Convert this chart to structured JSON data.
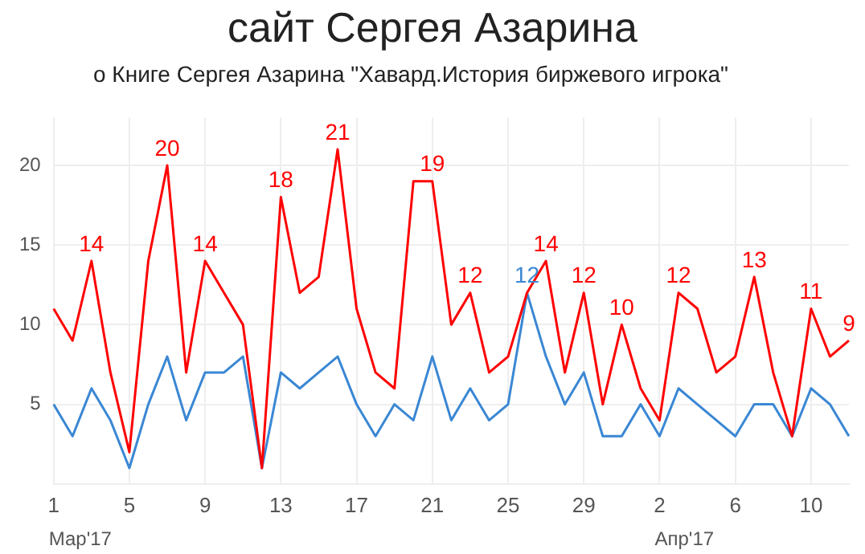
{
  "chart_data": {
    "type": "line",
    "title": "сайт Сергея Азарина",
    "subtitle": "о Книге Сергея Азарина \"Хавард.История биржевого игрока\"",
    "categories": [
      "1",
      null,
      null,
      null,
      "5",
      null,
      null,
      null,
      "9",
      null,
      null,
      null,
      "13",
      null,
      null,
      null,
      "17",
      null,
      null,
      null,
      "21",
      null,
      null,
      null,
      "25",
      null,
      null,
      null,
      "29",
      null,
      null,
      null,
      "2",
      null,
      null,
      null,
      "6",
      null,
      null,
      null,
      "10",
      null,
      null
    ],
    "series": [
      {
        "color": "#ff0000",
        "values": [
          11,
          9,
          14,
          7,
          2,
          14,
          20,
          7,
          14,
          12,
          10,
          1,
          18,
          12,
          13,
          21,
          11,
          7,
          6,
          19,
          19,
          10,
          12,
          7,
          8,
          12,
          14,
          7,
          12,
          5,
          10,
          6,
          4,
          12,
          11,
          7,
          8,
          13,
          7,
          3,
          11,
          8,
          9
        ],
        "value_labels": [
          null,
          null,
          "14",
          null,
          null,
          null,
          "20",
          null,
          "14",
          null,
          null,
          null,
          "18",
          null,
          null,
          "21",
          null,
          null,
          null,
          null,
          "19",
          null,
          "12",
          null,
          null,
          null,
          "14",
          null,
          "12",
          null,
          "10",
          null,
          null,
          "12",
          null,
          null,
          null,
          "13",
          null,
          null,
          "11",
          null,
          "9"
        ]
      },
      {
        "color": "#3a87d4",
        "values": [
          5,
          3,
          6,
          4,
          1,
          5,
          8,
          4,
          7,
          7,
          8,
          1,
          7,
          6,
          7,
          8,
          5,
          3,
          5,
          4,
          8,
          4,
          6,
          4,
          5,
          12,
          8,
          5,
          7,
          3,
          3,
          5,
          3,
          6,
          5,
          4,
          3,
          5,
          5,
          3,
          6,
          5,
          3
        ],
        "value_labels": [
          null,
          null,
          null,
          null,
          null,
          null,
          null,
          null,
          null,
          null,
          null,
          null,
          null,
          null,
          null,
          null,
          null,
          null,
          null,
          null,
          null,
          null,
          null,
          null,
          null,
          "12",
          null,
          null,
          null,
          null,
          null,
          null,
          null,
          null,
          null,
          null,
          null,
          null,
          null,
          null,
          null,
          null,
          null
        ]
      }
    ],
    "annotations": [
      "Мар'17",
      "Апр'17"
    ],
    "ylim": [
      0,
      23
    ],
    "yticks": [
      5,
      10,
      15,
      20
    ],
    "grid": true,
    "marker": "none",
    "line_style": "solid"
  }
}
